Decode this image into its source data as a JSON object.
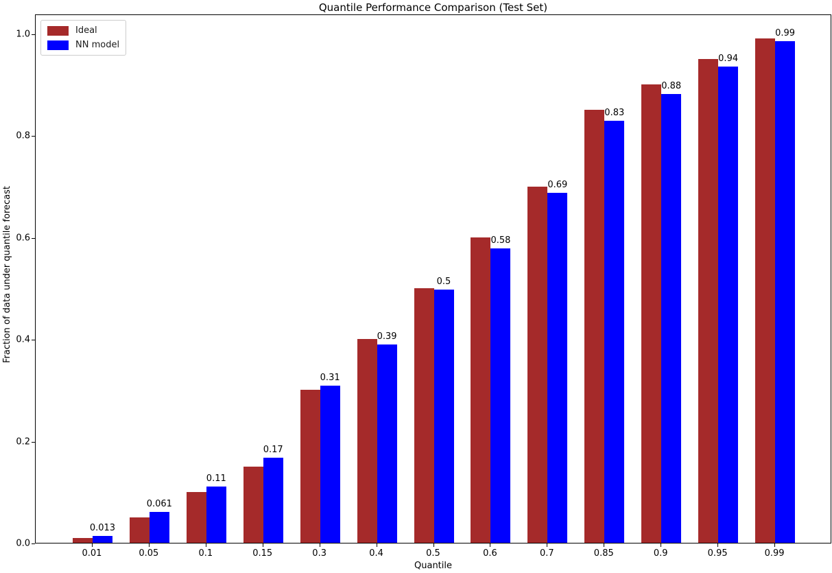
{
  "chart_data": {
    "type": "bar",
    "title": "Quantile Performance Comparison (Test Set)",
    "xlabel": "Quantile",
    "ylabel": "Fraction of data under quantile forecast",
    "categories": [
      "0.01",
      "0.05",
      "0.1",
      "0.15",
      "0.3",
      "0.4",
      "0.5",
      "0.6",
      "0.7",
      "0.85",
      "0.9",
      "0.95",
      "0.99"
    ],
    "series": [
      {
        "name": "Ideal",
        "color": "#A52A2A",
        "values": [
          0.01,
          0.05,
          0.1,
          0.15,
          0.3,
          0.4,
          0.5,
          0.6,
          0.7,
          0.85,
          0.9,
          0.95,
          0.99
        ]
      },
      {
        "name": "NN model",
        "color": "#0000FF",
        "values": [
          0.013,
          0.061,
          0.11,
          0.167,
          0.309,
          0.39,
          0.497,
          0.578,
          0.687,
          0.829,
          0.881,
          0.935,
          0.985
        ]
      }
    ],
    "bar_labels": [
      "0.013",
      "0.061",
      "0.11",
      "0.17",
      "0.31",
      "0.39",
      "0.5",
      "0.58",
      "0.69",
      "0.83",
      "0.88",
      "0.94",
      "0.99"
    ],
    "yticks": [
      "0.0",
      "0.2",
      "0.4",
      "0.6",
      "0.8",
      "1.0"
    ],
    "ylim": [
      0,
      1.039
    ],
    "bar_width_frac": 0.35,
    "legend_position": "upper-left",
    "grid": false
  }
}
